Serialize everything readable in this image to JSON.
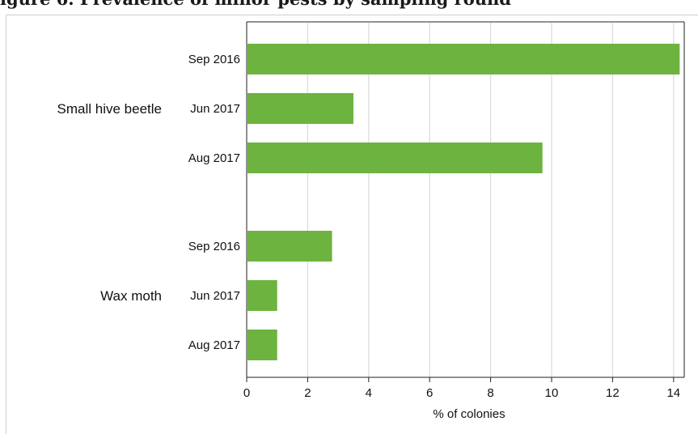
{
  "header": {
    "title": "igure 6. Prevalence of minor pests by sampling round"
  },
  "chart_data": {
    "type": "bar",
    "orientation": "horizontal",
    "title": "",
    "xlabel": "% of colonies",
    "ylabel": "",
    "xlim": [
      0,
      14.5
    ],
    "xticks": [
      0,
      2,
      4,
      6,
      8,
      10,
      12,
      14
    ],
    "grid": "vertical",
    "bar_color": "#6db33f",
    "groups": [
      {
        "name": "Small hive beetle",
        "categories": [
          "Sep 2016",
          "Jun 2017",
          "Aug 2017"
        ],
        "values": [
          14.2,
          3.5,
          9.7
        ]
      },
      {
        "name": "Wax moth",
        "categories": [
          "Sep 2016",
          "Jun 2017",
          "Aug 2017"
        ],
        "values": [
          2.8,
          1.0,
          1.0
        ]
      }
    ]
  }
}
